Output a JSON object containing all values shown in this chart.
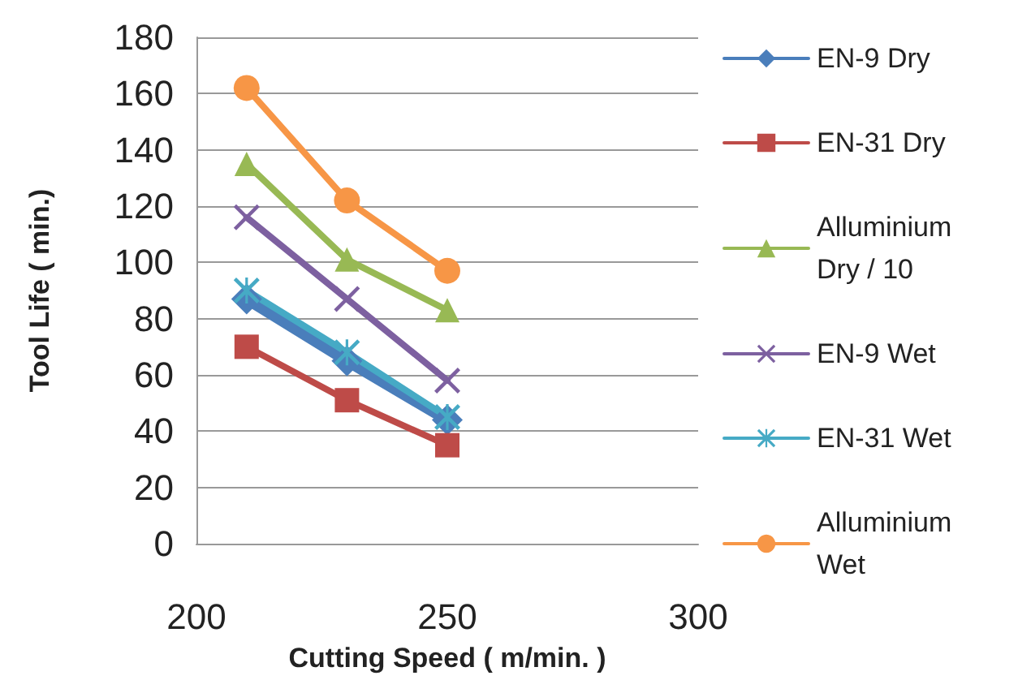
{
  "chart_data": {
    "type": "line",
    "xlabel": "Cutting Speed ( m/min. )",
    "ylabel": "Tool Life ( min.)",
    "x": [
      210,
      230,
      250
    ],
    "xlim": [
      200,
      300
    ],
    "xticks": [
      200,
      250,
      300
    ],
    "ylim": [
      0,
      180
    ],
    "yticks": [
      0,
      20,
      40,
      60,
      80,
      100,
      120,
      140,
      160,
      180
    ],
    "grid": "y",
    "legend": "right",
    "series": [
      {
        "name": "EN-9 Dry",
        "color": "#4a7ebb",
        "marker": "diamond",
        "values": [
          87,
          65,
          44
        ]
      },
      {
        "name": "EN-31 Dry",
        "color": "#be4b48",
        "marker": "square",
        "values": [
          70,
          51,
          35
        ]
      },
      {
        "name": "Alluminium Dry / 10",
        "color": "#98b954",
        "marker": "triangle",
        "values": [
          135,
          101,
          83
        ]
      },
      {
        "name": "EN-9 Wet",
        "color": "#7d60a0",
        "marker": "cross",
        "values": [
          116,
          87,
          58
        ]
      },
      {
        "name": "EN-31 Wet",
        "color": "#46aac5",
        "marker": "star",
        "values": [
          90,
          68,
          45
        ]
      },
      {
        "name": "Alluminium Wet",
        "color": "#f79646",
        "marker": "circle",
        "values": [
          162,
          122,
          97
        ]
      }
    ]
  }
}
